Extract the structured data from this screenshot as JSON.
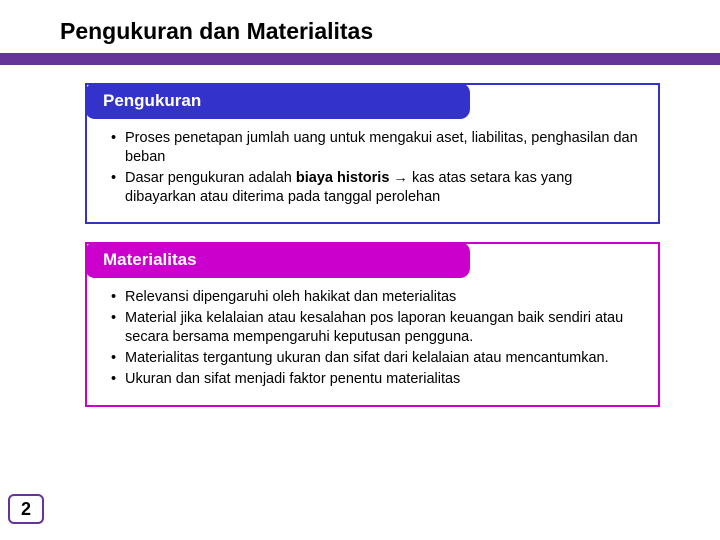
{
  "title": "Pengukuran dan Materialitas",
  "colors": {
    "accent": "#663399",
    "pengukuran_border": "#3333cc",
    "pengukuran_header_bg": "#3333cc",
    "materialitas_border": "#cc00cc",
    "materialitas_header_bg": "#cc00cc",
    "background": "#ffffff",
    "text": "#000000"
  },
  "typography": {
    "title_fontsize": 23,
    "section_header_fontsize": 17,
    "body_fontsize": 14.5,
    "font_family": "Arial"
  },
  "sections": [
    {
      "id": "pengukuran",
      "header": "Pengukuran",
      "bullets": [
        {
          "text": "Proses penetapan jumlah uang untuk mengakui aset, liabilitas, penghasilan dan beban"
        },
        {
          "prefix": "Dasar pengukuran adalah ",
          "bold": "biaya historis",
          "suffix": " → kas atas setara kas yang dibayarkan atau diterima pada tanggal perolehan"
        }
      ]
    },
    {
      "id": "materialitas",
      "header": "Materialitas",
      "bullets": [
        {
          "text": "Relevansi dipengaruhi oleh hakikat dan meterialitas"
        },
        {
          "text": "Material jika kelalaian atau kesalahan pos laporan keuangan baik sendiri atau secara bersama mempengaruhi keputusan pengguna."
        },
        {
          "text": "Materialitas tergantung ukuran dan sifat dari kelalaian atau mencantumkan."
        },
        {
          "text": "Ukuran dan sifat menjadi faktor penentu materialitas"
        }
      ]
    }
  ],
  "page_number": "2"
}
